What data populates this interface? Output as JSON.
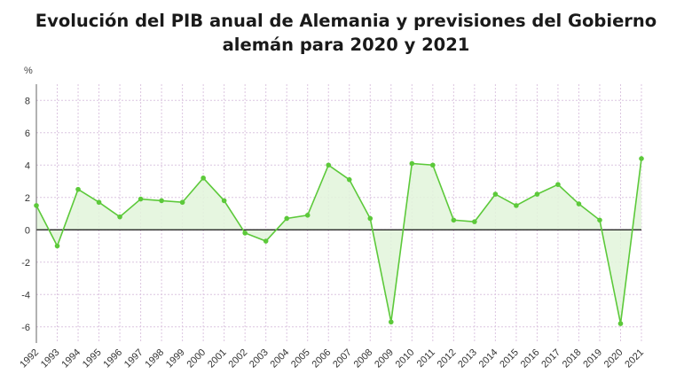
{
  "chart_data": {
    "type": "area",
    "title": "Evolución del PIB anual de Alemania y previsiones del Gobierno alemán para 2020 y 2021",
    "title_lines": [
      "Evolución del PIB anual de Alemania y previsiones del Gobierno",
      "alemán para 2020 y 2021"
    ],
    "ylabel": "%",
    "xlabel": "",
    "ylim": [
      -7,
      9
    ],
    "yticks": [
      -6,
      -4,
      -2,
      0,
      2,
      4,
      6,
      8
    ],
    "grid": true,
    "x": [
      "1992",
      "1993",
      "1994",
      "1995",
      "1996",
      "1997",
      "1998",
      "1999",
      "2000",
      "2001",
      "2002",
      "2003",
      "2004",
      "2005",
      "2006",
      "2007",
      "2008",
      "2009",
      "2010",
      "2011",
      "2012",
      "2013",
      "2014",
      "2015",
      "2016",
      "2017",
      "2018",
      "2019",
      "2020",
      "2021"
    ],
    "series": [
      {
        "values": [
          1.5,
          -1.0,
          2.5,
          1.7,
          0.8,
          1.9,
          1.8,
          1.7,
          3.2,
          1.8,
          -0.2,
          -0.7,
          0.7,
          0.9,
          4.0,
          3.1,
          0.7,
          -5.7,
          4.1,
          4.0,
          0.6,
          0.5,
          2.2,
          1.5,
          2.2,
          2.8,
          1.6,
          0.6,
          -5.8,
          4.4
        ]
      }
    ],
    "colors": {
      "line": "#5cc93a",
      "area": "#e2f5da",
      "grid": "#dcc6e0",
      "zero": "#111111"
    }
  }
}
